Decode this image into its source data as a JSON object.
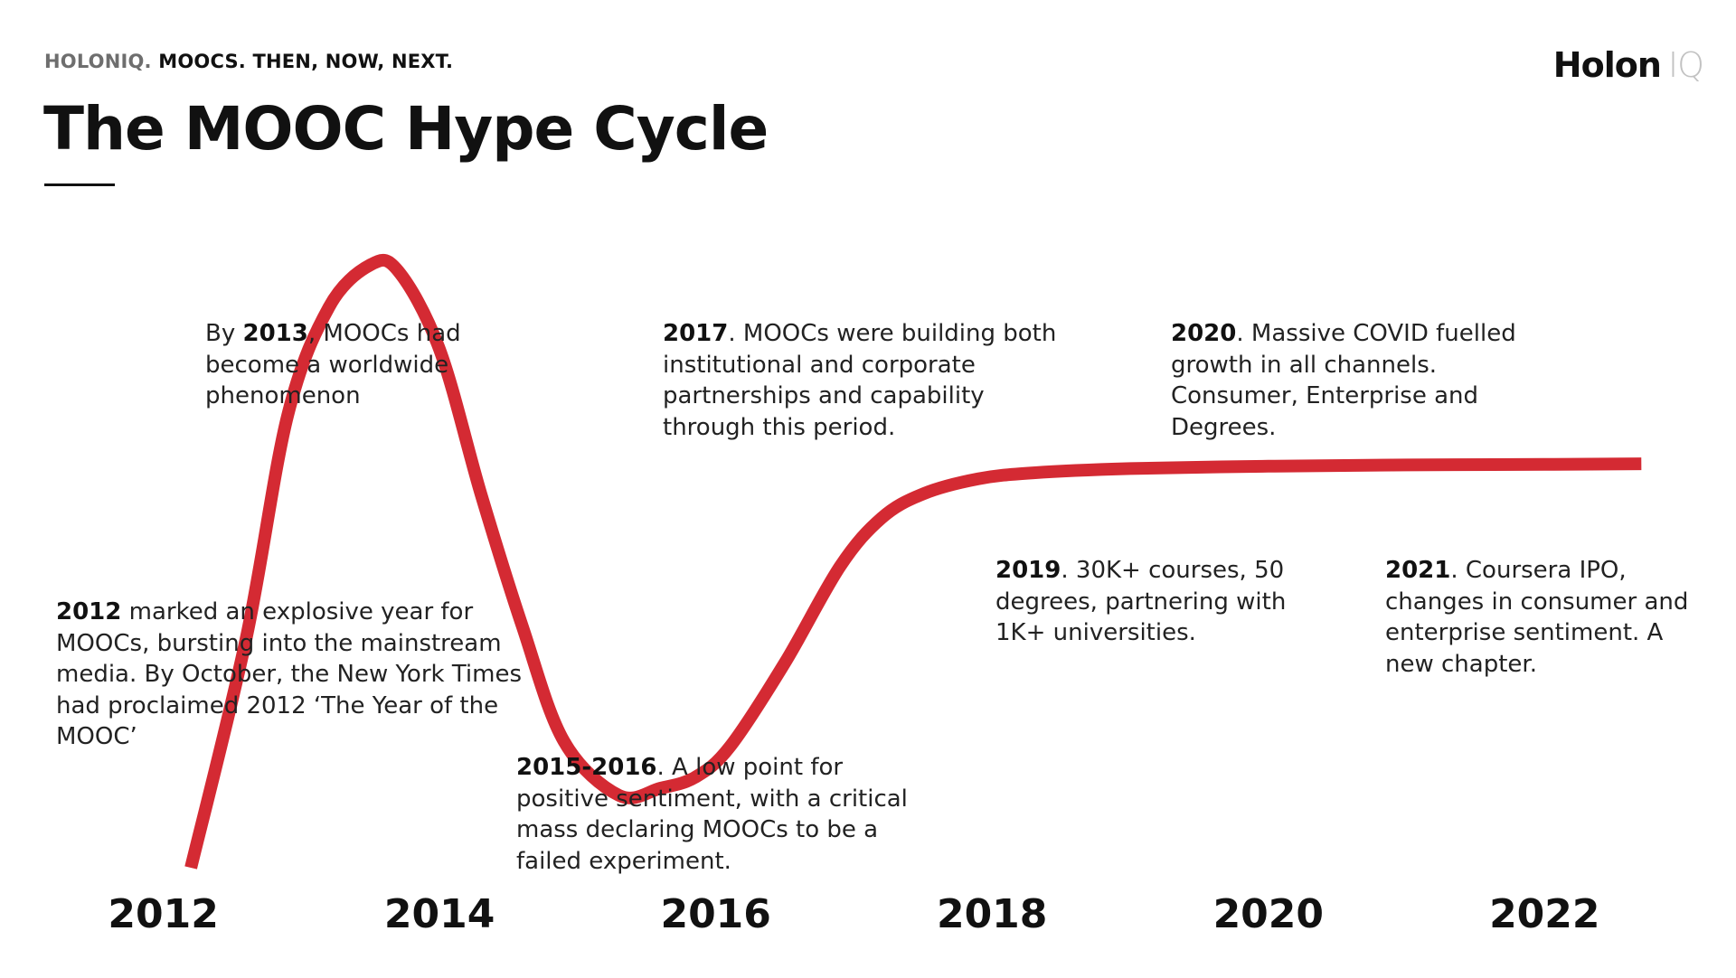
{
  "header": {
    "kicker_brand": "HOLONIQ.",
    "kicker_text": "MOOCS. THEN, NOW, NEXT.",
    "title": "The MOOC Hype Cycle",
    "logo_main": "Holon",
    "logo_sub": "IQ"
  },
  "colors": {
    "curve": "#d42a33",
    "text": "#222222",
    "title": "#111111"
  },
  "annotations": [
    {
      "id": "n2013",
      "pre": "By ",
      "bold": "2013",
      "text": ", MOOCs had become a worldwide phenomenon"
    },
    {
      "id": "n2017",
      "pre": "",
      "bold": "2017",
      "text": ". MOOCs were building both institutional and corporate partnerships and capability through this period."
    },
    {
      "id": "n2020",
      "pre": "",
      "bold": "2020",
      "text": ". Massive COVID fuelled growth in all channels. Consumer, Enterprise and Degrees."
    },
    {
      "id": "n2012",
      "pre": "",
      "bold": "2012",
      "text": " marked an explosive year for MOOCs, bursting into the mainstream media. By October, the New York Times had proclaimed 2012 ‘The Year of the MOOC’"
    },
    {
      "id": "n2015",
      "pre": "",
      "bold": "2015-2016",
      "text": ". A low point for positive sentiment, with a critical mass declaring MOOCs to be a failed experiment."
    },
    {
      "id": "n2019",
      "pre": "",
      "bold": "2019",
      "text": ". 30K+ courses, 50 degrees, partnering with 1K+ universities."
    },
    {
      "id": "n2021",
      "pre": "",
      "bold": "2021",
      "text": ". Coursera IPO, changes in consumer and enterprise sentiment. A new chapter."
    }
  ],
  "chart_data": {
    "type": "line",
    "title": "The MOOC Hype Cycle",
    "xlabel": "",
    "ylabel": "",
    "x_ticks": [
      "2012",
      "2014",
      "2016",
      "2018",
      "2020",
      "2022"
    ],
    "xlim": [
      2011.8,
      2022.6
    ],
    "ylim": [
      0,
      1
    ],
    "grid": false,
    "series": [
      {
        "color": "#d42a33",
        "x": [
          2012.2,
          2012.6,
          2012.9,
          2013.2,
          2013.5,
          2013.7,
          2014.0,
          2014.3,
          2014.6,
          2014.9,
          2015.3,
          2015.6,
          2015.85,
          2016.1,
          2016.5,
          2016.9,
          2017.2,
          2017.5,
          2017.9,
          2018.3,
          2019.0,
          2020.0,
          2021.0,
          2022.0,
          2022.7
        ],
        "y": [
          0.0,
          0.38,
          0.75,
          0.93,
          1.0,
          0.99,
          0.86,
          0.62,
          0.4,
          0.21,
          0.12,
          0.132,
          0.15,
          0.2,
          0.34,
          0.5,
          0.58,
          0.62,
          0.645,
          0.655,
          0.662,
          0.666,
          0.668,
          0.669,
          0.67
        ]
      }
    ]
  }
}
